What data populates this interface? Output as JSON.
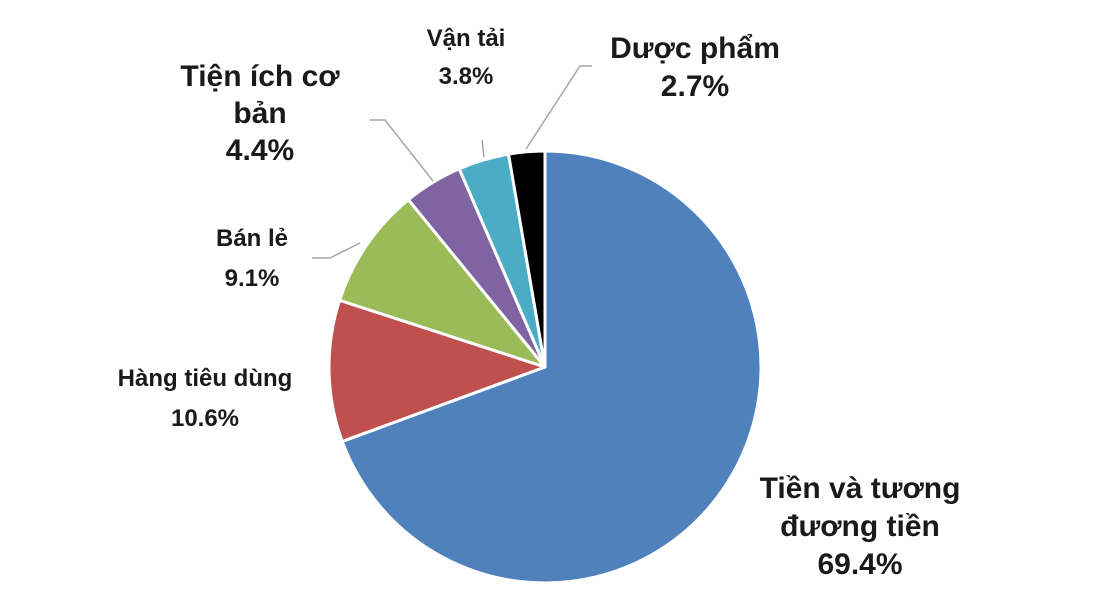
{
  "chart_data": {
    "type": "pie",
    "slices": [
      {
        "name": "Tiền và tương đương tiền",
        "label_lines": [
          "Tiền và tương",
          "đương tiền"
        ],
        "value": 69.4,
        "display": "69.4%",
        "color": "#4f81bd"
      },
      {
        "name": "Hàng tiêu dùng",
        "label_lines": [
          "Hàng tiêu dùng"
        ],
        "value": 10.6,
        "display": "10.6%",
        "color": "#c0504d"
      },
      {
        "name": "Bán lẻ",
        "label_lines": [
          "Bán lẻ"
        ],
        "value": 9.1,
        "display": "9.1%",
        "color": "#9bbb59"
      },
      {
        "name": "Tiện ích cơ bản",
        "label_lines": [
          "Tiện ích cơ",
          "bản"
        ],
        "value": 4.4,
        "display": "4.4%",
        "color": "#8064a2"
      },
      {
        "name": "Vận tải",
        "label_lines": [
          "Vận tải"
        ],
        "value": 3.8,
        "display": "3.8%",
        "color": "#4bacc6"
      },
      {
        "name": "Dược phẩm",
        "label_lines": [
          "Dược phẩm"
        ],
        "value": 2.7,
        "display": "2.7%",
        "color": "#000000"
      }
    ]
  }
}
